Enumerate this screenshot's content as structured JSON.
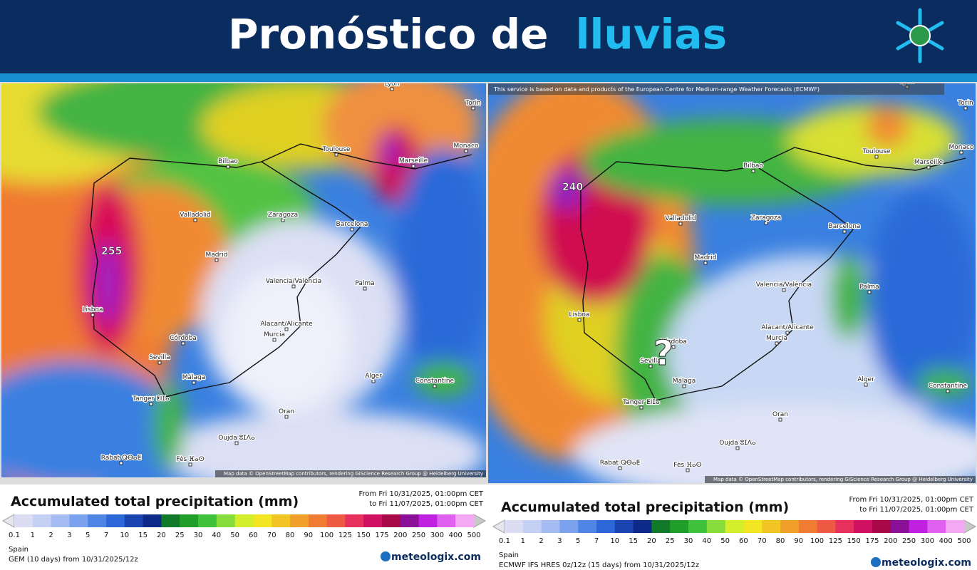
{
  "header": {
    "title_start": "Pronóstico de",
    "title_highlight": "lluvias"
  },
  "maps": [
    {
      "cities": [
        "Lyon",
        "Torin",
        "Toulouse",
        "Monaco",
        "Marseille",
        "Bilbao",
        "Valladolid",
        "Zaragoza",
        "Barcelona",
        "Madrid",
        "Lisboa",
        "Valencia/València",
        "Palma",
        "Alacant/Alicante",
        "Murcia",
        "Córdoba",
        "Sevilla",
        "Málaga",
        "Alger",
        "Constantine",
        "Tanger ⵟⵏⵊⴰ",
        "Oran",
        "Oujda ⵓⵊⴷⴰ",
        "Rabat ⵕⴱⴰⵟ",
        "Fès ⴼⴰⵙ"
      ],
      "peak_label": "255",
      "attribution": "Map data © OpenStreetMap contributors, rendering GIScience Research Group @ Heidelberg University"
    },
    {
      "notice": "This service is based on data and products of the European Centre for Medium-range Weather Forecasts (ECMWF)",
      "cities": [
        "Lyon",
        "Torin",
        "Toulouse",
        "Monaco",
        "Marseille",
        "Bilbao",
        "Valladolid",
        "Zaragoza",
        "Barcelona",
        "Madrid",
        "Lisboa",
        "Valencia/València",
        "Palma",
        "Alacant/Alicante",
        "Murcia",
        "Córdoba",
        "Sevilla",
        "Málaga",
        "Alger",
        "Constantine",
        "Tanger ⵟⵏⵊⴰ",
        "Oran",
        "Oujda ⵓⵊⴷⴰ",
        "Rabat ⵕⴱⴰⵟ",
        "Fès ⴼⴰⵙ"
      ],
      "peak_label": "240",
      "question": "?",
      "attribution": "Map data © OpenStreetMap contributors, rendering GIScience Research Group @ Heidelberg University"
    }
  ],
  "legend_colors": [
    "#dcdcf2",
    "#c4d0f4",
    "#a4bcf2",
    "#7aa2ee",
    "#4f86e6",
    "#2c68d8",
    "#1a44b0",
    "#0e2a88",
    "#107a28",
    "#1f9e2a",
    "#3ec23c",
    "#86dc3a",
    "#d2ee2c",
    "#f2e624",
    "#f2c424",
    "#f2a02c",
    "#f07c34",
    "#ee5a44",
    "#e8305c",
    "#d01060",
    "#a80848",
    "#8a1098",
    "#c020e0",
    "#e060f0",
    "#f4a8f4"
  ],
  "legends": [
    {
      "title": "Accumulated total precipitation (mm)",
      "from": "From Fri 10/31/2025, 01:00pm CET",
      "to": "to Fri 11/07/2025, 01:00pm CET",
      "scale": [
        "0.1",
        "1",
        "2",
        "3",
        "5",
        "7",
        "10",
        "15",
        "20",
        "25",
        "30",
        "40",
        "50",
        "60",
        "70",
        "80",
        "90",
        "100",
        "125",
        "150",
        "175",
        "200",
        "250",
        "300",
        "400",
        "500"
      ],
      "region": "Spain",
      "model": "GEM (10 days) from 10/31/2025/12z",
      "brand": "meteologix.com"
    },
    {
      "title": "Accumulated total precipitation (mm)",
      "from": "From Fri 10/31/2025, 01:00pm CET",
      "to": "to Fri 11/07/2025, 01:00pm CET",
      "scale": [
        "0.1",
        "1",
        "2",
        "3",
        "5",
        "7",
        "10",
        "15",
        "20",
        "25",
        "30",
        "40",
        "50",
        "60",
        "70",
        "80",
        "90",
        "100",
        "125",
        "150",
        "175",
        "200",
        "250",
        "300",
        "400",
        "500"
      ],
      "region": "Spain",
      "model": "ECMWF IFS HRES 0z/12z (15 days) from 10/31/2025/12z",
      "brand": "meteologix.com"
    }
  ]
}
